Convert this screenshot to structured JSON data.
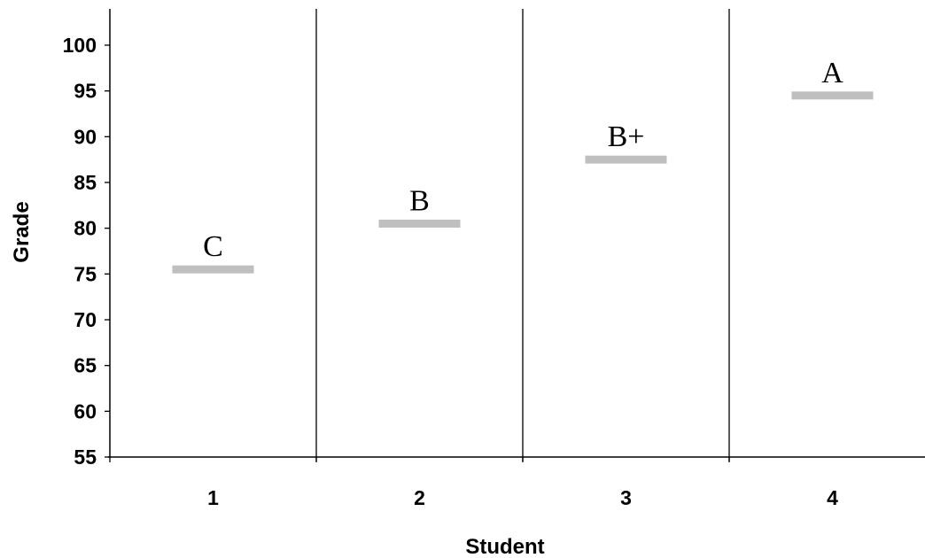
{
  "chart_data": {
    "type": "scatter",
    "title": "",
    "xlabel": "Student",
    "ylabel": "Grade",
    "categories": [
      "1",
      "2",
      "3",
      "4"
    ],
    "series": [
      {
        "values": [
          75.5,
          80.5,
          87.5,
          94.5
        ],
        "point_labels": [
          "C",
          "B",
          "B+",
          "A"
        ],
        "color": "#bfbfbf"
      }
    ],
    "ylim": [
      55,
      104
    ],
    "yticks": [
      "55",
      "60",
      "65",
      "70",
      "75",
      "80",
      "85",
      "90",
      "95",
      "100"
    ],
    "grid": false,
    "category_separators": true,
    "legend": "none"
  }
}
